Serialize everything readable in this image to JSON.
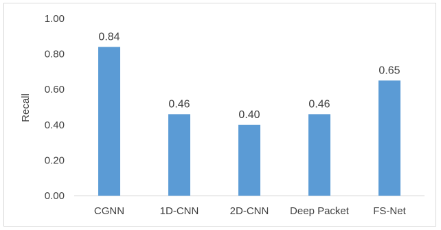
{
  "chart_data": {
    "type": "bar",
    "categories": [
      "CGNN",
      "1D-CNN",
      "2D-CNN",
      "Deep Packet",
      "FS-Net"
    ],
    "values": [
      0.84,
      0.46,
      0.4,
      0.46,
      0.65
    ],
    "data_labels": [
      "0.84",
      "0.46",
      "0.40",
      "0.46",
      "0.65"
    ],
    "ylabel": "Recall",
    "ylim": [
      0,
      1.0
    ],
    "yticks": [
      "0.00",
      "0.20",
      "0.40",
      "0.60",
      "0.80",
      "1.00"
    ],
    "grid": false,
    "bar_color": "#5b9bd5"
  }
}
